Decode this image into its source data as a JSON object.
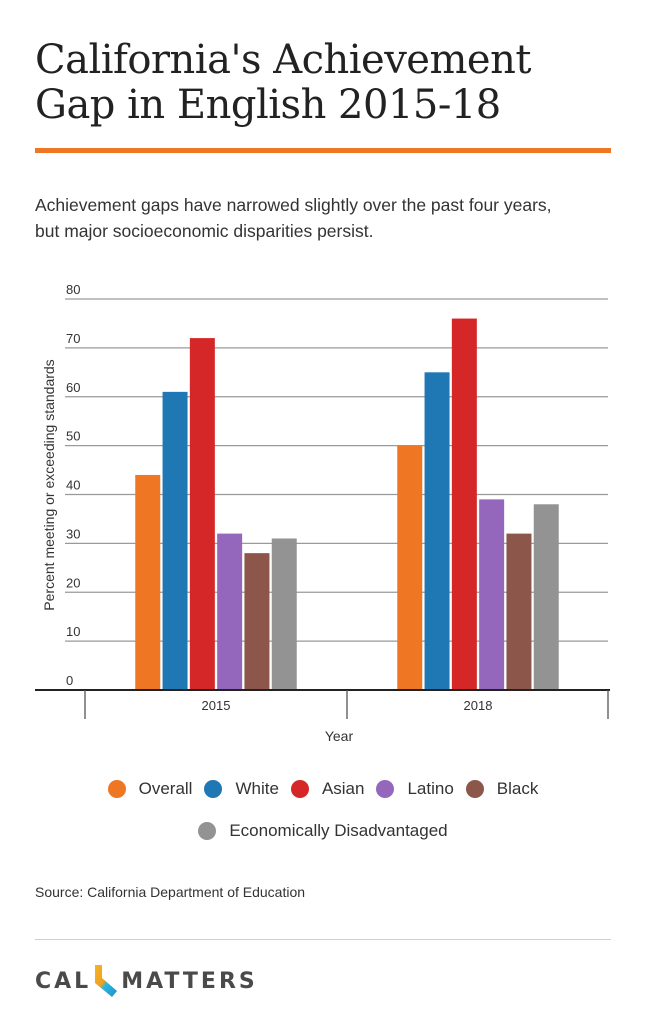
{
  "header": {
    "title_line1": "California's Achievement",
    "title_line2": "Gap in English 2015-18",
    "subtitle_line1": "Achievement gaps have narrowed slightly over the past four years,",
    "subtitle_line2": "but major socioeconomic disparities persist.",
    "accent_color": "#ef7622"
  },
  "chart_data": {
    "type": "bar",
    "title": "California's Achievement Gap in English 2015-18",
    "xlabel": "Year",
    "ylabel": "Percent meeting or exceeding standards",
    "ylim": [
      0,
      80
    ],
    "yticks": [
      "0",
      "10",
      "20",
      "30",
      "40",
      "50",
      "60",
      "70",
      "80"
    ],
    "categories": [
      "2015",
      "2018"
    ],
    "grid": true,
    "legend_position": "bottom",
    "series": [
      {
        "name": "Overall",
        "color": "#ef7622",
        "values": [
          44,
          50
        ]
      },
      {
        "name": "White",
        "color": "#1f77b4",
        "values": [
          61,
          65
        ]
      },
      {
        "name": "Asian",
        "color": "#d62728",
        "values": [
          72,
          76
        ]
      },
      {
        "name": "Latino",
        "color": "#9467bd",
        "values": [
          32,
          39
        ]
      },
      {
        "name": "Black",
        "color": "#8c564b",
        "values": [
          28,
          32
        ]
      },
      {
        "name": "Economically Disadvantaged",
        "color": "#939393",
        "values": [
          31,
          38
        ]
      }
    ]
  },
  "footer": {
    "source": "Source: California Department of Education",
    "logo_left": "CAL",
    "logo_right": "MATTERS"
  }
}
